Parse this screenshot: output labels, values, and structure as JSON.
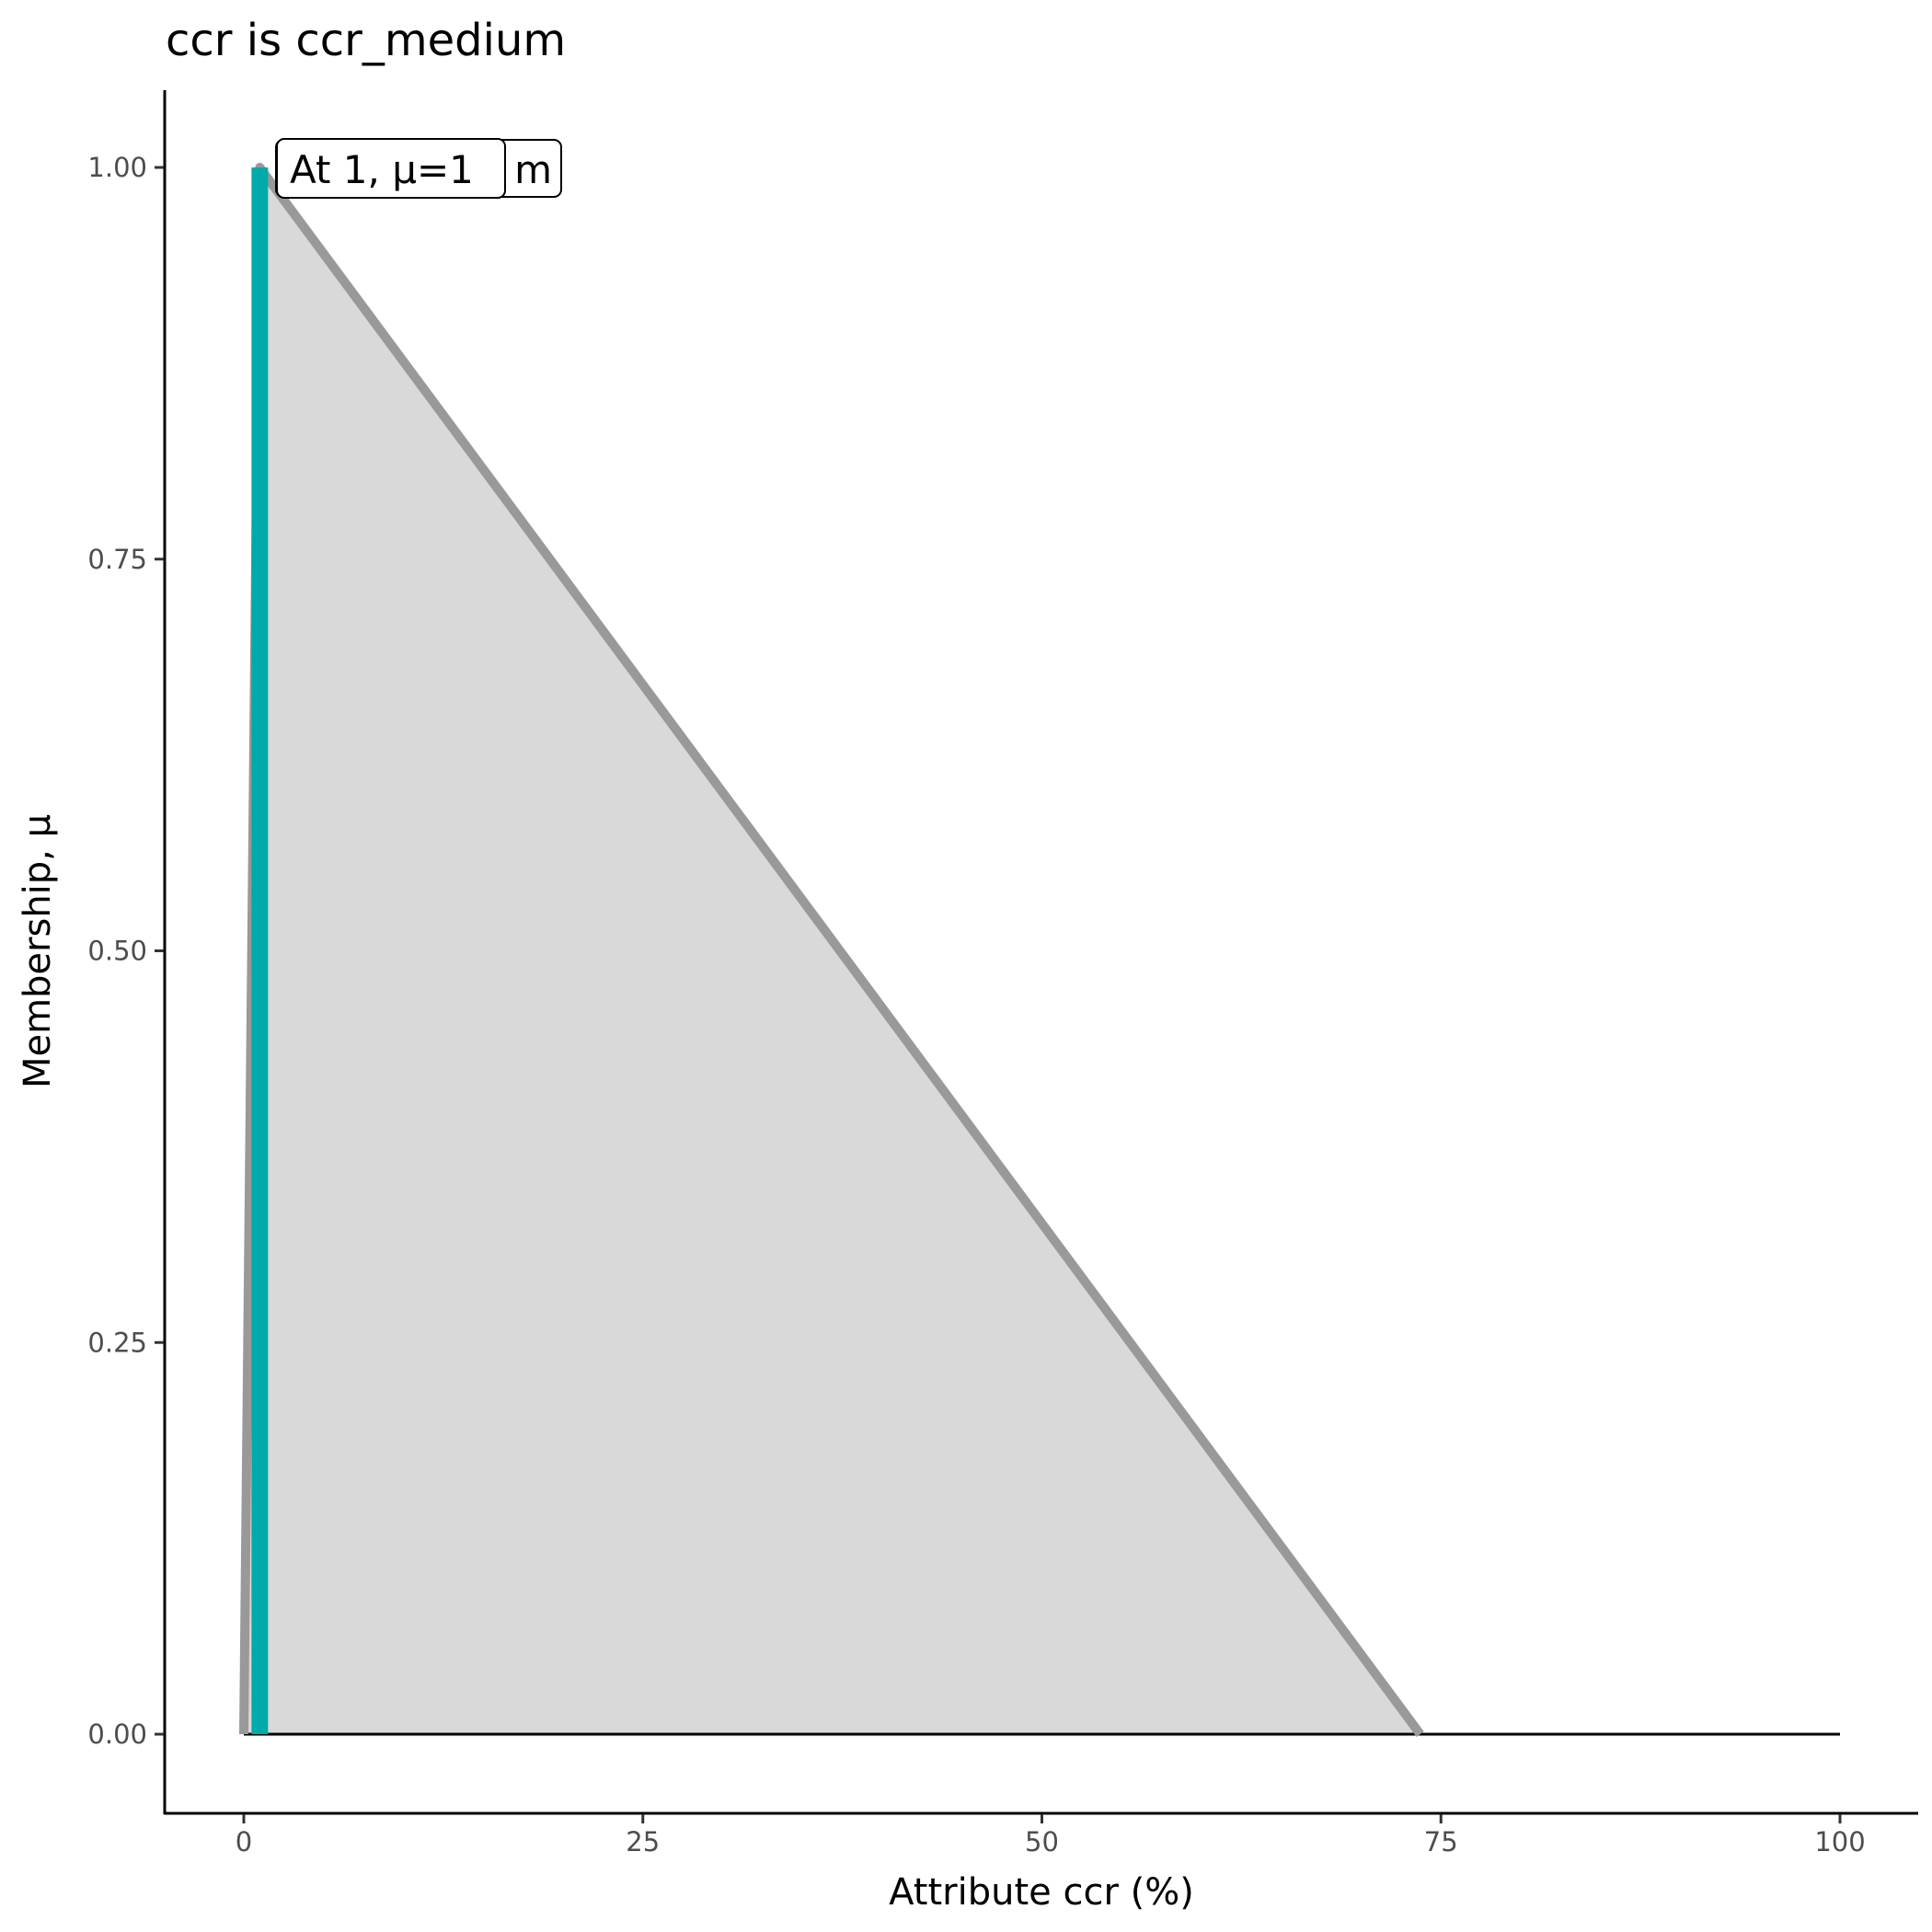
{
  "chart_data": {
    "type": "area",
    "title": "ccr is ccr_medium",
    "xlabel": "Attribute ccr (%)",
    "ylabel": "Membership, μ",
    "xlim": [
      -5,
      105
    ],
    "ylim": [
      -0.05,
      1.05
    ],
    "x_ticks": [
      0,
      25,
      50,
      75,
      100
    ],
    "x_tick_labels": [
      "0",
      "25",
      "50",
      "75",
      "100"
    ],
    "y_ticks": [
      0,
      0.25,
      0.5,
      0.75,
      1
    ],
    "y_tick_labels": [
      "0.00",
      "0.25",
      "0.50",
      "0.75",
      "1.00"
    ],
    "grid": false,
    "membership_function": {
      "x": [
        0,
        1,
        73.7
      ],
      "y": [
        0,
        1,
        0
      ],
      "line_color": "#999999",
      "fill_color": "#d9d9d9"
    },
    "baseline": {
      "x": [
        0,
        100
      ],
      "y": [
        0,
        0
      ],
      "color": "#000000"
    },
    "highlight": {
      "x": 1,
      "mu": 1,
      "color": "#00aaaa"
    },
    "annotations": [
      {
        "text": "m",
        "x": 1,
        "y": 1
      },
      {
        "text": "At 1, μ=1",
        "x": 1,
        "y": 1
      }
    ]
  }
}
